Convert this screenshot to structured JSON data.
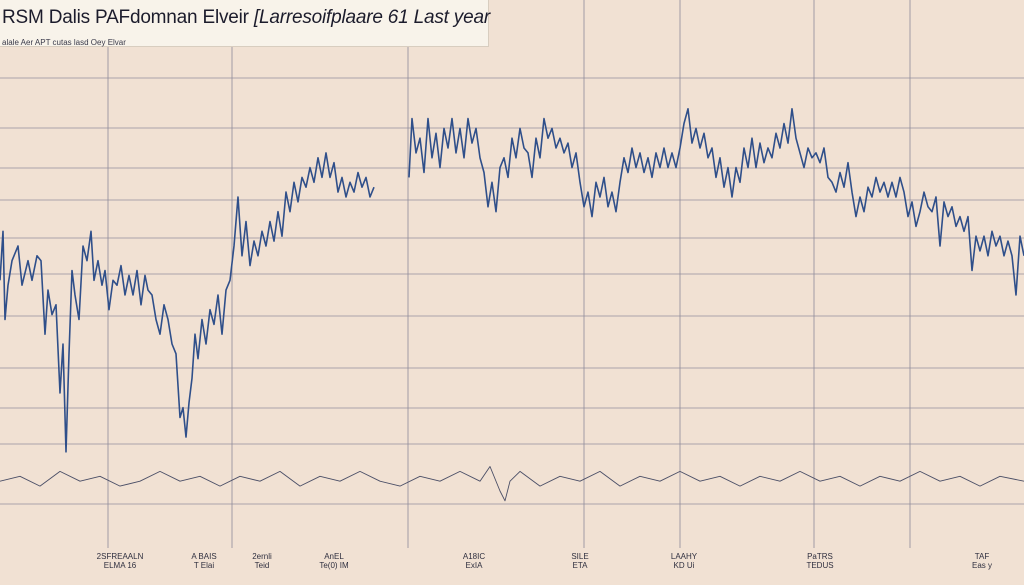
{
  "chart_data": {
    "type": "line",
    "title": "RSM Dalis PAFdomnan Elveir",
    "title_part2": "[Larresoifplaare 61 Last year",
    "subtitle": "alale Aer APT cutas lasd Oey Elvar",
    "grid": true,
    "colors": {
      "main_line": "#2f4f8a",
      "bottom_line": "#4a4e66",
      "gridline": "#8e8a9b",
      "background": "#f1e1d3",
      "title_box": "#f8f3ea"
    },
    "y_scale": [
      0,
      100
    ],
    "x_range": [
      0,
      1024
    ],
    "series": [
      {
        "values": [
          [
            0,
            53
          ],
          [
            3,
            63
          ],
          [
            5,
            45
          ],
          [
            8,
            52
          ],
          [
            12,
            57
          ],
          [
            18,
            60
          ],
          [
            22,
            52
          ],
          [
            28,
            57
          ],
          [
            32,
            53
          ],
          [
            37,
            58
          ],
          [
            41,
            57
          ],
          [
            45,
            42
          ],
          [
            48,
            51
          ],
          [
            52,
            46
          ],
          [
            56,
            48
          ],
          [
            60,
            30
          ],
          [
            63,
            40
          ],
          [
            66,
            18
          ],
          [
            69,
            38
          ],
          [
            72,
            55
          ],
          [
            75,
            50
          ],
          [
            79,
            45
          ],
          [
            83,
            60
          ],
          [
            87,
            57
          ],
          [
            91,
            63
          ],
          [
            94,
            53
          ],
          [
            98,
            57
          ],
          [
            102,
            52
          ],
          [
            105,
            55
          ],
          [
            109,
            47
          ],
          [
            113,
            53
          ],
          [
            117,
            52
          ],
          [
            121,
            56
          ],
          [
            125,
            50
          ],
          [
            129,
            54
          ],
          [
            133,
            50
          ],
          [
            137,
            55
          ],
          [
            141,
            48
          ],
          [
            145,
            54
          ],
          [
            148,
            51
          ],
          [
            152,
            50
          ],
          [
            156,
            45
          ],
          [
            160,
            42
          ],
          [
            164,
            48
          ],
          [
            168,
            45
          ],
          [
            172,
            40
          ],
          [
            176,
            38
          ],
          [
            180,
            25
          ],
          [
            183,
            27
          ],
          [
            186,
            21
          ],
          [
            189,
            28
          ],
          [
            192,
            33
          ],
          [
            195,
            42
          ],
          [
            198,
            37
          ],
          [
            202,
            45
          ],
          [
            206,
            40
          ],
          [
            210,
            47
          ],
          [
            214,
            44
          ],
          [
            218,
            50
          ],
          [
            222,
            42
          ],
          [
            226,
            51
          ],
          [
            230,
            53
          ],
          [
            234,
            60
          ],
          [
            238,
            70
          ],
          [
            242,
            58
          ],
          [
            246,
            65
          ],
          [
            250,
            56
          ],
          [
            254,
            61
          ],
          [
            258,
            58
          ],
          [
            262,
            63
          ],
          [
            266,
            60
          ],
          [
            270,
            65
          ],
          [
            274,
            61
          ],
          [
            278,
            67
          ],
          [
            282,
            62
          ],
          [
            286,
            71
          ],
          [
            290,
            67
          ],
          [
            294,
            73
          ],
          [
            298,
            69
          ],
          [
            302,
            74
          ],
          [
            306,
            72
          ],
          [
            310,
            76
          ],
          [
            314,
            73
          ],
          [
            318,
            78
          ],
          [
            322,
            74
          ],
          [
            326,
            79
          ],
          [
            330,
            74
          ],
          [
            334,
            77
          ],
          [
            338,
            71
          ],
          [
            342,
            74
          ],
          [
            346,
            70
          ],
          [
            350,
            73
          ],
          [
            354,
            71
          ],
          [
            358,
            75
          ],
          [
            362,
            72
          ],
          [
            366,
            74
          ],
          [
            370,
            70
          ],
          [
            374,
            72
          ]
        ]
      },
      {
        "values": [
          [
            409,
            74
          ],
          [
            412,
            86
          ],
          [
            416,
            79
          ],
          [
            420,
            82
          ],
          [
            424,
            75
          ],
          [
            428,
            86
          ],
          [
            432,
            78
          ],
          [
            436,
            83
          ],
          [
            440,
            76
          ],
          [
            444,
            84
          ],
          [
            448,
            80
          ],
          [
            452,
            86
          ],
          [
            456,
            79
          ],
          [
            460,
            84
          ],
          [
            464,
            78
          ],
          [
            468,
            86
          ],
          [
            472,
            81
          ],
          [
            476,
            84
          ],
          [
            480,
            78
          ],
          [
            484,
            75
          ],
          [
            488,
            68
          ],
          [
            492,
            73
          ],
          [
            496,
            67
          ],
          [
            500,
            76
          ],
          [
            504,
            78
          ],
          [
            508,
            74
          ],
          [
            512,
            82
          ],
          [
            516,
            78
          ],
          [
            520,
            84
          ],
          [
            524,
            80
          ],
          [
            528,
            79
          ],
          [
            532,
            74
          ],
          [
            536,
            82
          ],
          [
            540,
            78
          ],
          [
            544,
            86
          ],
          [
            548,
            82
          ],
          [
            552,
            84
          ],
          [
            556,
            80
          ],
          [
            560,
            82
          ],
          [
            564,
            79
          ],
          [
            568,
            81
          ],
          [
            572,
            76
          ],
          [
            576,
            79
          ],
          [
            580,
            73
          ],
          [
            584,
            68
          ],
          [
            588,
            71
          ],
          [
            592,
            66
          ],
          [
            596,
            73
          ],
          [
            600,
            70
          ],
          [
            604,
            74
          ],
          [
            608,
            68
          ],
          [
            612,
            71
          ],
          [
            616,
            67
          ],
          [
            620,
            73
          ],
          [
            624,
            78
          ],
          [
            628,
            75
          ],
          [
            632,
            80
          ],
          [
            636,
            76
          ],
          [
            640,
            79
          ],
          [
            644,
            75
          ],
          [
            648,
            78
          ],
          [
            652,
            74
          ],
          [
            656,
            79
          ],
          [
            660,
            76
          ],
          [
            664,
            80
          ],
          [
            668,
            76
          ],
          [
            672,
            79
          ],
          [
            676,
            76
          ],
          [
            680,
            80
          ],
          [
            684,
            85
          ],
          [
            688,
            88
          ],
          [
            692,
            81
          ],
          [
            696,
            84
          ],
          [
            700,
            80
          ],
          [
            704,
            83
          ],
          [
            708,
            78
          ],
          [
            712,
            80
          ],
          [
            716,
            74
          ],
          [
            720,
            78
          ],
          [
            724,
            72
          ],
          [
            728,
            76
          ],
          [
            732,
            70
          ],
          [
            736,
            76
          ],
          [
            740,
            73
          ],
          [
            744,
            80
          ],
          [
            748,
            76
          ],
          [
            752,
            82
          ],
          [
            756,
            76
          ],
          [
            760,
            81
          ],
          [
            764,
            77
          ],
          [
            768,
            80
          ],
          [
            772,
            78
          ],
          [
            776,
            83
          ],
          [
            780,
            80
          ],
          [
            784,
            85
          ],
          [
            788,
            81
          ],
          [
            792,
            88
          ],
          [
            796,
            82
          ],
          [
            800,
            79
          ],
          [
            804,
            76
          ],
          [
            808,
            80
          ],
          [
            812,
            78
          ],
          [
            816,
            79
          ],
          [
            820,
            77
          ],
          [
            824,
            80
          ],
          [
            828,
            74
          ],
          [
            832,
            73
          ],
          [
            836,
            71
          ],
          [
            840,
            75
          ],
          [
            844,
            72
          ],
          [
            848,
            77
          ],
          [
            852,
            71
          ],
          [
            856,
            66
          ],
          [
            860,
            70
          ],
          [
            864,
            67
          ],
          [
            868,
            72
          ],
          [
            872,
            70
          ],
          [
            876,
            74
          ],
          [
            880,
            71
          ],
          [
            884,
            73
          ],
          [
            888,
            70
          ],
          [
            892,
            73
          ],
          [
            896,
            70
          ],
          [
            900,
            74
          ],
          [
            904,
            71
          ],
          [
            908,
            66
          ],
          [
            912,
            69
          ],
          [
            916,
            64
          ],
          [
            920,
            67
          ],
          [
            924,
            71
          ],
          [
            928,
            68
          ],
          [
            932,
            67
          ],
          [
            936,
            70
          ],
          [
            940,
            60
          ],
          [
            944,
            69
          ],
          [
            948,
            66
          ],
          [
            952,
            68
          ],
          [
            956,
            64
          ],
          [
            960,
            66
          ],
          [
            964,
            63
          ],
          [
            968,
            66
          ],
          [
            972,
            55
          ],
          [
            976,
            62
          ],
          [
            980,
            59
          ],
          [
            984,
            62
          ],
          [
            988,
            58
          ],
          [
            992,
            63
          ],
          [
            996,
            60
          ],
          [
            1000,
            62
          ],
          [
            1004,
            58
          ],
          [
            1008,
            61
          ],
          [
            1012,
            58
          ],
          [
            1016,
            50
          ],
          [
            1020,
            62
          ],
          [
            1024,
            58
          ]
        ]
      },
      {
        "values": [
          [
            0,
            12
          ],
          [
            20,
            13
          ],
          [
            40,
            11
          ],
          [
            60,
            14
          ],
          [
            80,
            12
          ],
          [
            100,
            13
          ],
          [
            120,
            11
          ],
          [
            140,
            12
          ],
          [
            160,
            14
          ],
          [
            180,
            12
          ],
          [
            200,
            13
          ],
          [
            220,
            11
          ],
          [
            240,
            13
          ],
          [
            260,
            12
          ],
          [
            280,
            14
          ],
          [
            300,
            11
          ],
          [
            320,
            13
          ],
          [
            340,
            12
          ],
          [
            360,
            14
          ],
          [
            380,
            12
          ],
          [
            400,
            11
          ],
          [
            420,
            13
          ],
          [
            440,
            12
          ],
          [
            460,
            14
          ],
          [
            480,
            12
          ],
          [
            490,
            15
          ],
          [
            500,
            10
          ],
          [
            505,
            8
          ],
          [
            510,
            12
          ],
          [
            520,
            14
          ],
          [
            540,
            11
          ],
          [
            560,
            13
          ],
          [
            580,
            12
          ],
          [
            600,
            14
          ],
          [
            620,
            11
          ],
          [
            640,
            13
          ],
          [
            660,
            12
          ],
          [
            680,
            14
          ],
          [
            700,
            12
          ],
          [
            720,
            13
          ],
          [
            740,
            11
          ],
          [
            760,
            13
          ],
          [
            780,
            12
          ],
          [
            800,
            14
          ],
          [
            820,
            12
          ],
          [
            840,
            13
          ],
          [
            860,
            11
          ],
          [
            880,
            13
          ],
          [
            900,
            12
          ],
          [
            920,
            14
          ],
          [
            940,
            12
          ],
          [
            960,
            13
          ],
          [
            980,
            11
          ],
          [
            1000,
            13
          ],
          [
            1024,
            12
          ]
        ]
      }
    ],
    "tick_labels": [
      {
        "x": 120,
        "lines": [
          "2SFREAALN",
          "ELMA 16"
        ]
      },
      {
        "x": 204,
        "lines": [
          "A BAIS",
          "T Elai"
        ]
      },
      {
        "x": 262,
        "lines": [
          "2ernli",
          "Teid"
        ]
      },
      {
        "x": 334,
        "lines": [
          "AnEL",
          "Te(0) IM"
        ]
      },
      {
        "x": 474,
        "lines": [
          "A18IC",
          "ExIA"
        ]
      },
      {
        "x": 580,
        "lines": [
          "SILE",
          "ETA"
        ]
      },
      {
        "x": 684,
        "lines": [
          "LAAHY",
          "KD Ui"
        ]
      },
      {
        "x": 820,
        "lines": [
          "PaTRS",
          "TEDUS"
        ]
      },
      {
        "x": 982,
        "lines": [
          "TAF",
          "Eas y"
        ]
      }
    ]
  }
}
